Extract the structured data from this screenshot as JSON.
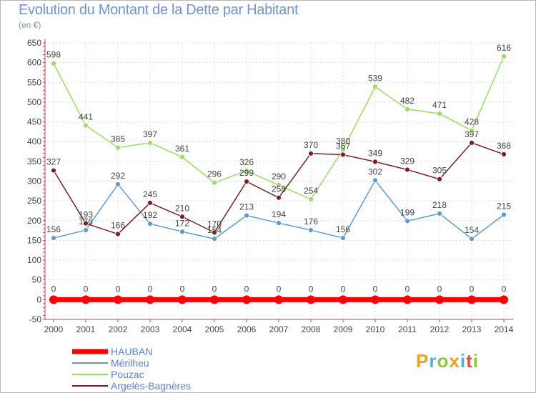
{
  "header": {
    "title": "Evolution du Montant de la Dette par Habitant",
    "subtitle": "(en €)"
  },
  "brand": {
    "letters": [
      "P",
      "r",
      "o",
      "x",
      "i",
      "t",
      "i"
    ],
    "colors": [
      "#f0a020",
      "#4fb0e0",
      "#8cc63f",
      "#f0a020",
      "#4fb0e0",
      "#e84c3d",
      "#8cc63f"
    ]
  },
  "chart_data": {
    "type": "line",
    "title": "Evolution du Montant de la Dette par Habitant",
    "ylabel": "(en €)",
    "xlabel": "",
    "x": [
      "2000",
      "2001",
      "2002",
      "2003",
      "2004",
      "2005",
      "2006",
      "2007",
      "2008",
      "2009",
      "2010",
      "2011",
      "2012",
      "2013",
      "2014"
    ],
    "ylim": [
      -50,
      650
    ],
    "yticks": [
      -50,
      0,
      50,
      100,
      150,
      200,
      250,
      300,
      350,
      400,
      450,
      500,
      550,
      600,
      650
    ],
    "grid": true,
    "legend_position": "bottom-left",
    "series": [
      {
        "name": "HAUBAN",
        "color": "#ff0000",
        "values": [
          0,
          0,
          0,
          0,
          0,
          0,
          0,
          0,
          0,
          0,
          0,
          0,
          0,
          0,
          0
        ]
      },
      {
        "name": "Mérilheu",
        "color": "#5b9bd5",
        "values": [
          156,
          176,
          292,
          192,
          172,
          154,
          213,
          194,
          176,
          156,
          302,
          199,
          218,
          154,
          215
        ]
      },
      {
        "name": "Pouzac",
        "color": "#99dd66",
        "values": [
          598,
          441,
          385,
          397,
          361,
          296,
          326,
          290,
          254,
          380,
          539,
          482,
          471,
          428,
          616
        ]
      },
      {
        "name": "Argelès-Bagnères",
        "color": "#7a1f22",
        "values": [
          327,
          193,
          166,
          245,
          210,
          170,
          299,
          258,
          370,
          367,
          349,
          329,
          305,
          397,
          368
        ]
      }
    ]
  }
}
